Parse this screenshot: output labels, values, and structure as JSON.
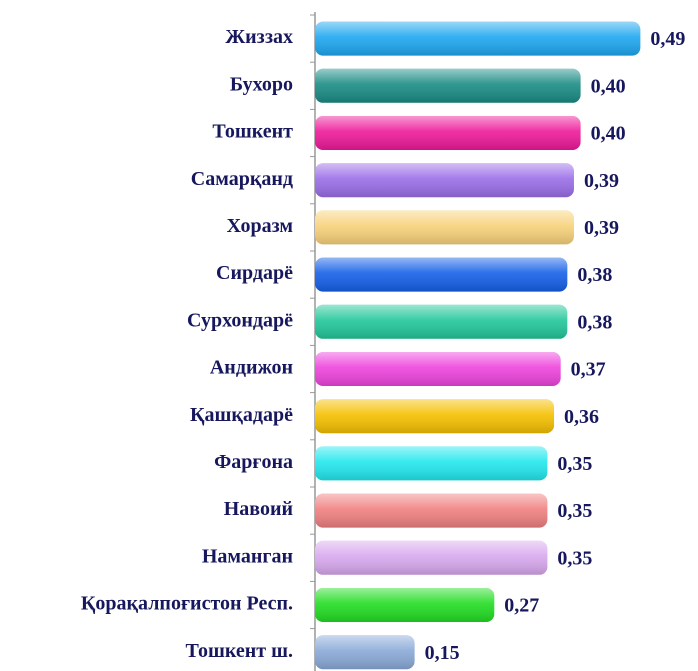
{
  "chart_data": {
    "type": "bar",
    "orientation": "horizontal",
    "categories": [
      "Жиззах",
      "Бухоро",
      "Тошкент",
      "Самарқанд",
      "Хоразм",
      "Сирдарё",
      "Сурхондарё",
      "Андижон",
      "Қашқадарё",
      "Фарғона",
      "Навоий",
      "Наманган",
      "Қорақалпоғистон Респ.",
      "Тошкент ш."
    ],
    "values": [
      0.49,
      0.4,
      0.4,
      0.39,
      0.39,
      0.38,
      0.38,
      0.37,
      0.36,
      0.35,
      0.35,
      0.35,
      0.27,
      0.15
    ],
    "value_labels": [
      "0,49",
      "0,40",
      "0,40",
      "0,39",
      "0,39",
      "0,38",
      "0,38",
      "0,37",
      "0,36",
      "0,35",
      "0,35",
      "0,35",
      "0,27",
      "0,15"
    ],
    "colors": [
      "#1ea7f0",
      "#1a8c85",
      "#ee1a9a",
      "#9b6ee8",
      "#f8d27a",
      "#1560e8",
      "#22c79a",
      "#ee44dd",
      "#f5c000",
      "#22e8ee",
      "#f08080",
      "#d8a8ee",
      "#22dd22",
      "#8aaad8"
    ],
    "xlim": [
      0,
      0.5
    ]
  }
}
